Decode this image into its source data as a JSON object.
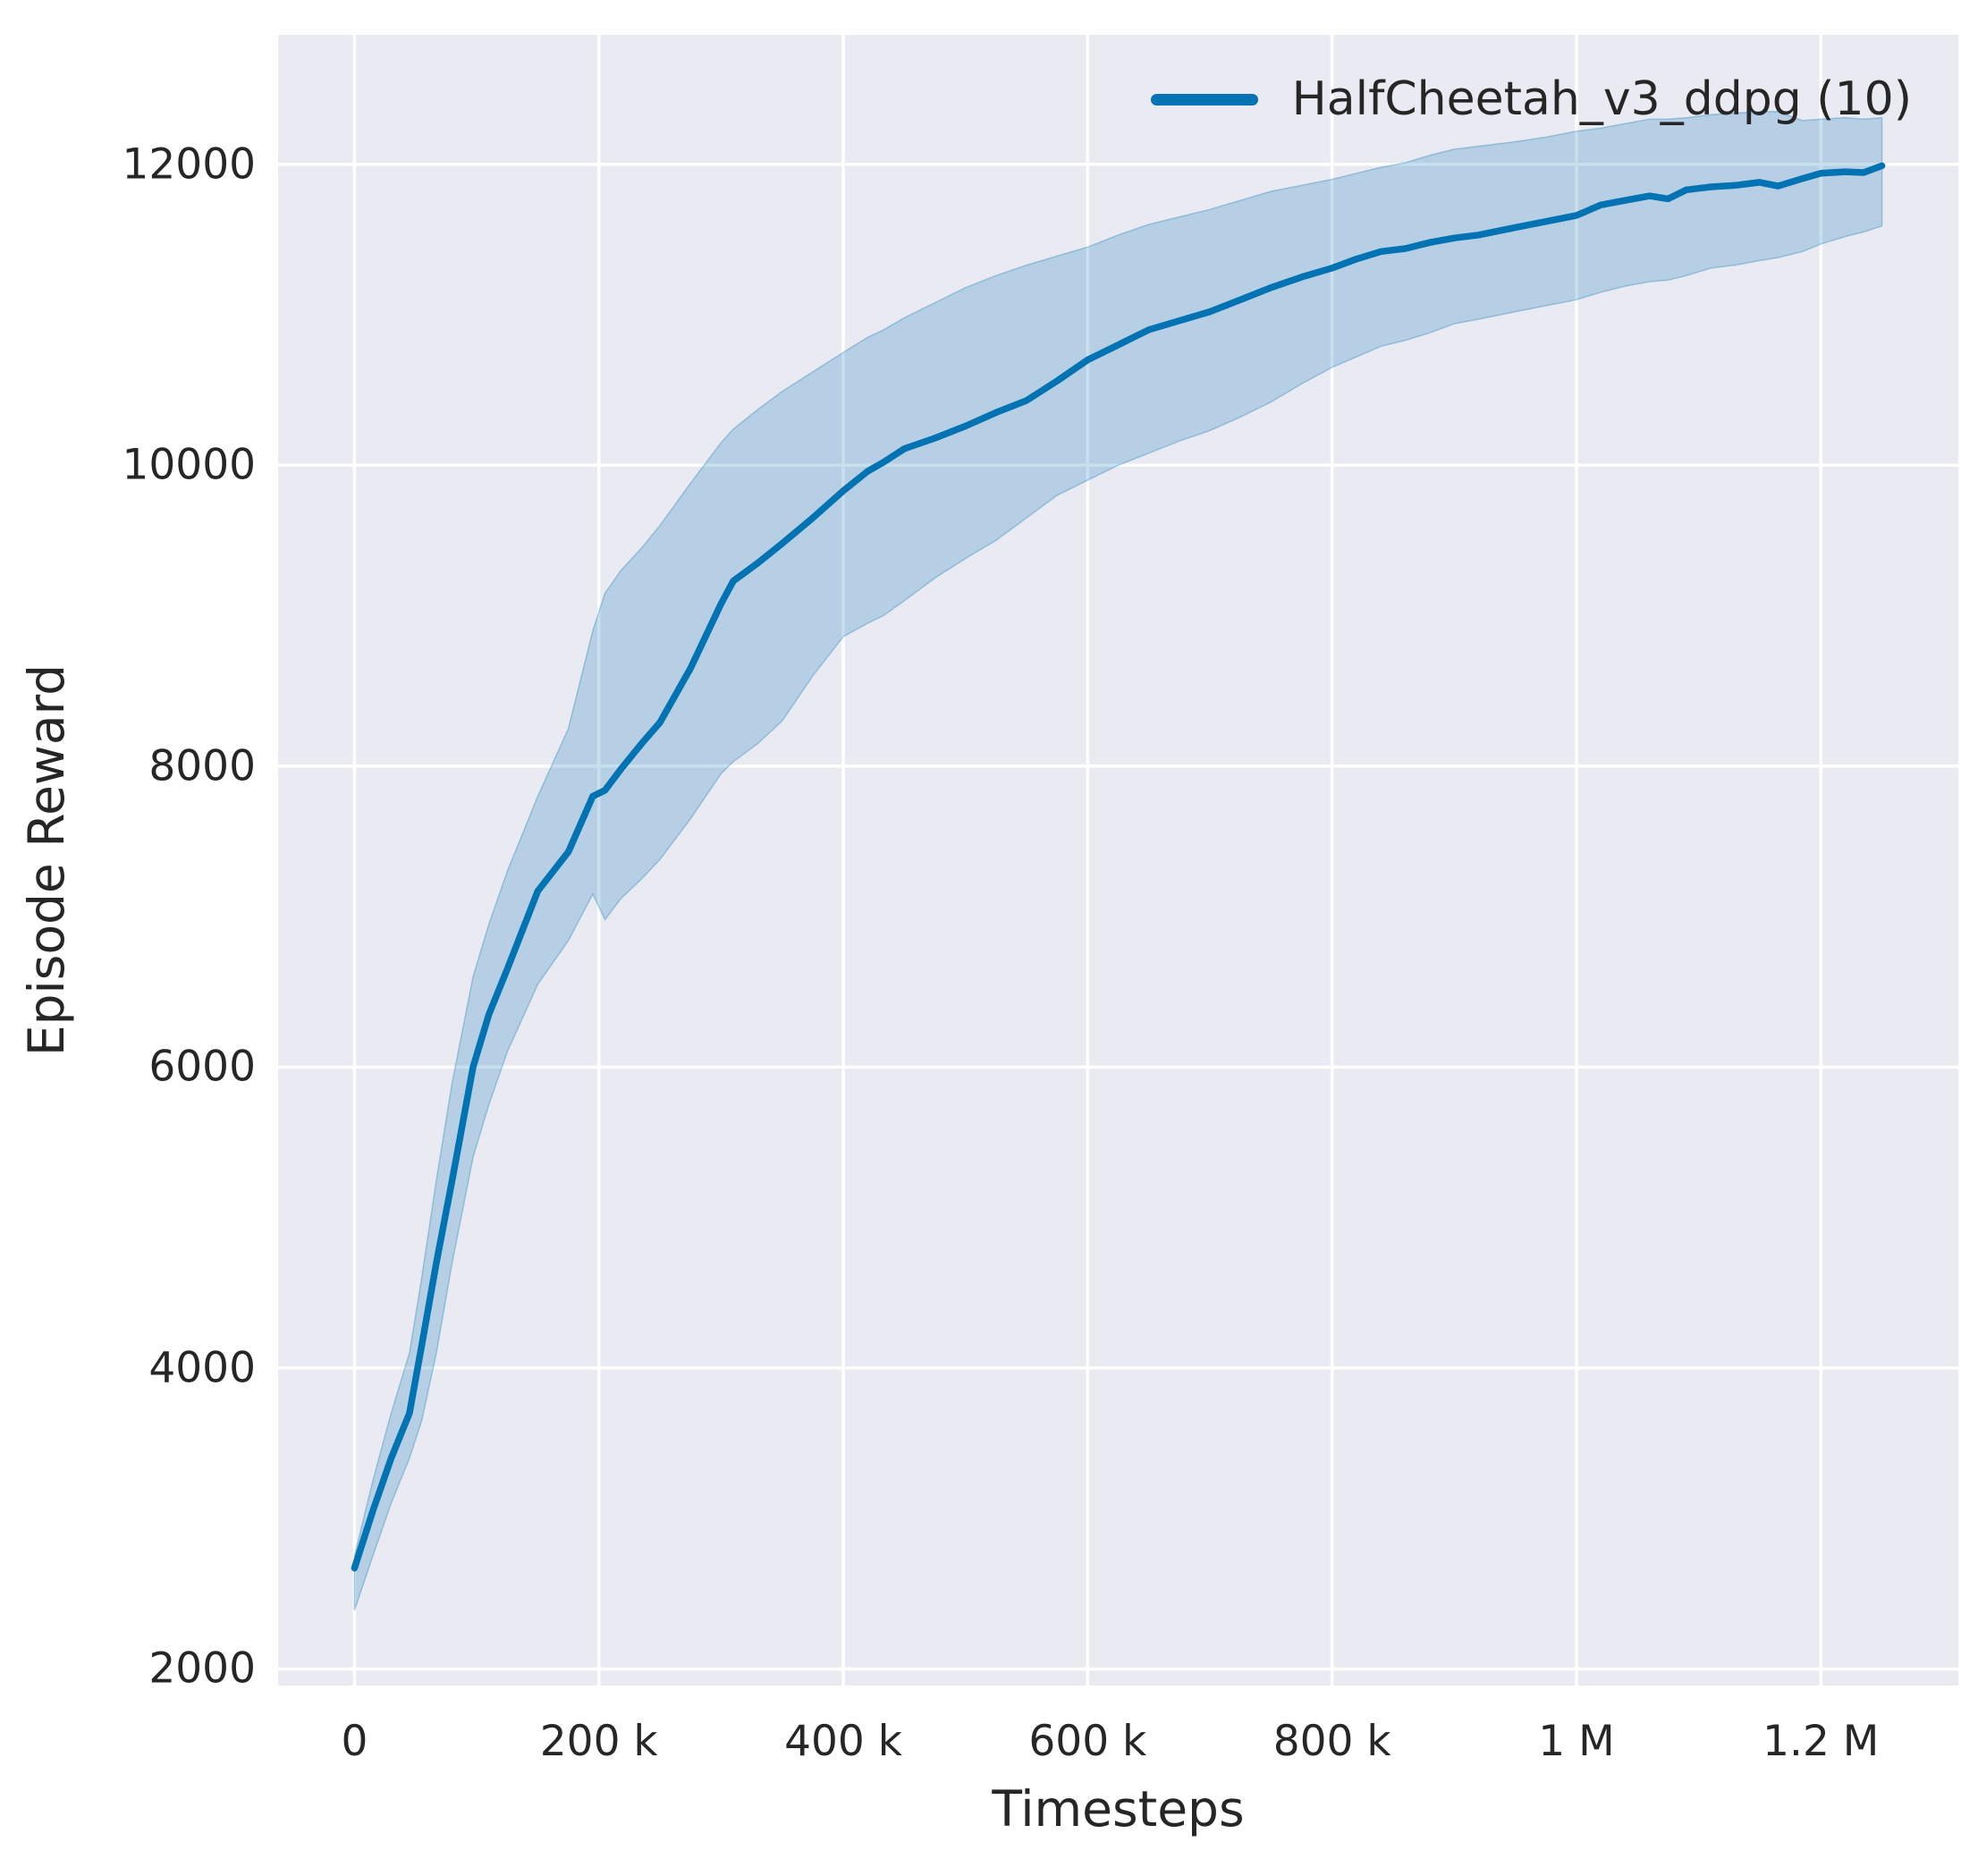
{
  "figure": {
    "background": "#ffffff",
    "plot_background": "#eaeaf2",
    "grid_color": "#ffffff",
    "text_color": "#262626",
    "line_color": "#0173b2",
    "band_fill": "rgba(1,115,178,0.22)",
    "band_edge": "rgba(1,115,178,0.30)"
  },
  "legend": {
    "label": "HalfCheetah_v3_ddpg (10)"
  },
  "chart_data": {
    "type": "line",
    "title": "",
    "xlabel": "Timesteps",
    "ylabel": "Episode Reward",
    "xlim": [
      -62500,
      1312500
    ],
    "ylim": [
      1890,
      12860
    ],
    "grid": true,
    "legend_position": "upper right",
    "x_ticks": [
      {
        "value": 0,
        "label": "0"
      },
      {
        "value": 200000,
        "label": "200 k"
      },
      {
        "value": 400000,
        "label": "400 k"
      },
      {
        "value": 600000,
        "label": "600 k"
      },
      {
        "value": 800000,
        "label": "800 k"
      },
      {
        "value": 1000000,
        "label": "1 M"
      },
      {
        "value": 1200000,
        "label": "1.2 M"
      }
    ],
    "y_ticks": [
      {
        "value": 2000,
        "label": "2000"
      },
      {
        "value": 4000,
        "label": "4000"
      },
      {
        "value": 6000,
        "label": "6000"
      },
      {
        "value": 8000,
        "label": "8000"
      },
      {
        "value": 10000,
        "label": "10000"
      },
      {
        "value": 12000,
        "label": "12000"
      }
    ],
    "series": [
      {
        "name": "HalfCheetah_v3_ddpg (10)",
        "runs": 10,
        "x": [
          0,
          15000,
          30000,
          45000,
          55000,
          67000,
          80000,
          97000,
          110000,
          125000,
          150000,
          175000,
          195000,
          205000,
          218000,
          235000,
          250000,
          275000,
          300000,
          310000,
          330000,
          350000,
          375000,
          400000,
          420000,
          433000,
          450000,
          475000,
          500000,
          525000,
          550000,
          575000,
          600000,
          625000,
          650000,
          675000,
          700000,
          725000,
          750000,
          775000,
          800000,
          820000,
          840000,
          860000,
          880000,
          900000,
          920000,
          950000,
          975000,
          1000000,
          1020000,
          1040000,
          1060000,
          1075000,
          1090000,
          1110000,
          1130000,
          1150000,
          1165000,
          1185000,
          1200000,
          1220000,
          1235000,
          1250000
        ],
        "mean": [
          2670,
          3050,
          3400,
          3700,
          4150,
          4700,
          5250,
          6000,
          6350,
          6650,
          7170,
          7430,
          7800,
          7840,
          7980,
          8150,
          8290,
          8650,
          9080,
          9230,
          9350,
          9480,
          9650,
          9830,
          9960,
          10020,
          10110,
          10180,
          10260,
          10350,
          10430,
          10560,
          10700,
          10800,
          10900,
          10960,
          11020,
          11100,
          11180,
          11250,
          11310,
          11370,
          11420,
          11440,
          11480,
          11510,
          11530,
          11580,
          11620,
          11660,
          11730,
          11760,
          11790,
          11770,
          11830,
          11850,
          11860,
          11880,
          11855,
          11905,
          11940,
          11950,
          11945,
          11990
        ],
        "lower": [
          2390,
          2750,
          3100,
          3400,
          3650,
          4100,
          4700,
          5400,
          5750,
          6100,
          6550,
          6840,
          7150,
          6980,
          7120,
          7250,
          7380,
          7650,
          7950,
          8030,
          8150,
          8300,
          8600,
          8860,
          8950,
          9000,
          9100,
          9250,
          9380,
          9500,
          9650,
          9800,
          9900,
          10000,
          10080,
          10160,
          10230,
          10320,
          10420,
          10540,
          10650,
          10720,
          10790,
          10830,
          10880,
          10940,
          10970,
          11020,
          11060,
          11100,
          11150,
          11190,
          11220,
          11230,
          11260,
          11310,
          11330,
          11360,
          11380,
          11420,
          11470,
          11520,
          11550,
          11590
        ],
        "upper": [
          2750,
          3250,
          3700,
          4100,
          4600,
          5250,
          5900,
          6600,
          6950,
          7300,
          7800,
          8250,
          8900,
          9150,
          9300,
          9450,
          9600,
          9880,
          10150,
          10240,
          10370,
          10490,
          10620,
          10750,
          10850,
          10900,
          10980,
          11080,
          11180,
          11260,
          11330,
          11390,
          11450,
          11530,
          11600,
          11650,
          11700,
          11760,
          11820,
          11860,
          11900,
          11940,
          11980,
          12010,
          12060,
          12100,
          12120,
          12150,
          12180,
          12220,
          12240,
          12270,
          12300,
          12300,
          12310,
          12330,
          12340,
          12350,
          12350,
          12290,
          12300,
          12310,
          12300,
          12310
        ]
      }
    ]
  }
}
